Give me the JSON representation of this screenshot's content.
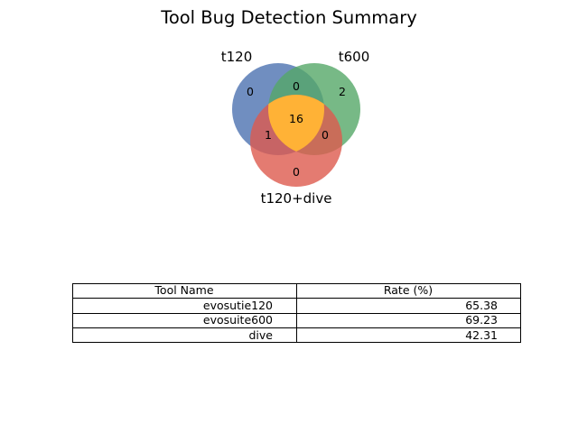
{
  "chart_data": {
    "type": "venn3",
    "title": "Tool Bug Detection Summary",
    "sets": [
      {
        "key": "A",
        "label": "t120",
        "color": "#4c72b0"
      },
      {
        "key": "B",
        "label": "t600",
        "color": "#55a868"
      },
      {
        "key": "C",
        "label": "t120+dive",
        "color": "#dd5a4e"
      }
    ],
    "regions": {
      "A_only": 0,
      "B_only": 2,
      "C_only": 0,
      "AB_only": 0,
      "AC_only": 1,
      "BC_only": 0,
      "ABC": 16
    },
    "colors": {
      "center": "#ffb236"
    },
    "table": {
      "columns": [
        "Tool Name",
        "Rate (%)"
      ],
      "rows": [
        [
          "evosutie120",
          "65.38"
        ],
        [
          "evosuite600",
          "69.23"
        ],
        [
          "dive",
          "42.31"
        ]
      ]
    }
  }
}
